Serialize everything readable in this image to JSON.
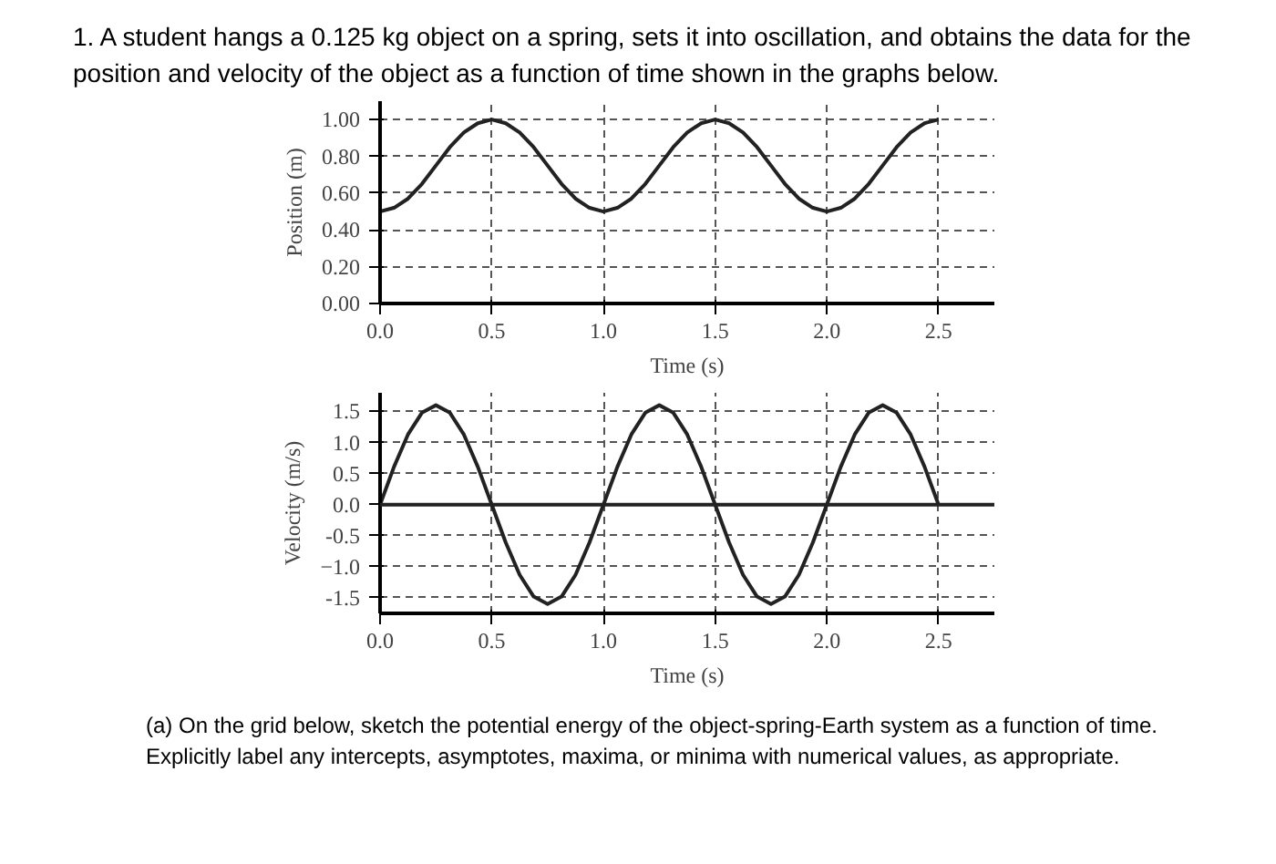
{
  "chart_data": [
    {
      "type": "line",
      "title": "1. A student hangs a 0.125 kg object on a spring, sets it into oscillation, and obtains the data for the position and velocity of the object as a function of time shown in the graphs below.",
      "xlabel": "Time (s)",
      "ylabel": "Position (m)",
      "x": [
        0,
        0.0625,
        0.125,
        0.1875,
        0.25,
        0.3125,
        0.375,
        0.4375,
        0.5,
        0.5625,
        0.625,
        0.6875,
        0.75,
        0.8125,
        0.875,
        0.9375,
        1,
        1.0625,
        1.125,
        1.1875,
        1.25,
        1.3125,
        1.375,
        1.4375,
        1.5,
        1.5625,
        1.625,
        1.6875,
        1.75,
        1.8125,
        1.875,
        1.9375,
        2,
        2.0625,
        2.125,
        2.1875,
        2.25,
        2.3125,
        2.375,
        2.4375,
        2.5
      ],
      "series": [
        {
          "color": "#222222",
          "values": [
            0.5,
            0.52,
            0.57,
            0.65,
            0.75,
            0.85,
            0.93,
            0.98,
            1.0,
            0.98,
            0.93,
            0.85,
            0.75,
            0.65,
            0.57,
            0.52,
            0.5,
            0.52,
            0.57,
            0.65,
            0.75,
            0.85,
            0.93,
            0.98,
            1.0,
            0.98,
            0.93,
            0.85,
            0.75,
            0.65,
            0.57,
            0.52,
            0.5,
            0.52,
            0.57,
            0.65,
            0.75,
            0.85,
            0.93,
            0.98,
            1.0
          ]
        }
      ],
      "xlim": [
        0,
        2.75
      ],
      "xticks": [
        {
          "value": 0,
          "label": "0.0"
        },
        0.5,
        {
          "value": 1,
          "label": "1.0"
        },
        1.5,
        {
          "value": 2,
          "label": "2.0"
        },
        2.5
      ],
      "ylim": [
        0,
        1.1
      ],
      "yticks": [
        {
          "value": 0,
          "label": "0.00"
        },
        {
          "value": 0.2,
          "label": "0.20"
        },
        {
          "value": 0.4,
          "label": "0.40"
        },
        {
          "value": 0.6,
          "label": "0.60"
        },
        {
          "value": 0.8,
          "label": "0.80"
        },
        {
          "value": 1,
          "label": "1.00"
        }
      ],
      "grid": true,
      "line_style": "solid",
      "marker": "none"
    },
    {
      "type": "line",
      "xlabel": "Time (s)",
      "ylabel": "Velocity (m/s)",
      "x": [
        0,
        0.0625,
        0.125,
        0.1875,
        0.25,
        0.3125,
        0.375,
        0.4375,
        0.5,
        0.5625,
        0.625,
        0.6875,
        0.75,
        0.8125,
        0.875,
        0.9375,
        1,
        1.0625,
        1.125,
        1.1875,
        1.25,
        1.3125,
        1.375,
        1.4375,
        1.5,
        1.5625,
        1.625,
        1.6875,
        1.75,
        1.8125,
        1.875,
        1.9375,
        2,
        2.0625,
        2.125,
        2.1875,
        2.25,
        2.3125,
        2.375,
        2.4375,
        2.5
      ],
      "series": [
        {
          "color": "#222222",
          "values": [
            0,
            0.61,
            1.13,
            1.48,
            1.6,
            1.48,
            1.13,
            0.61,
            0,
            -0.61,
            -1.13,
            -1.48,
            -1.6,
            -1.48,
            -1.13,
            -0.61,
            0,
            0.61,
            1.13,
            1.48,
            1.6,
            1.48,
            1.13,
            0.61,
            0,
            -0.61,
            -1.13,
            -1.48,
            -1.6,
            -1.48,
            -1.13,
            -0.61,
            0,
            0.61,
            1.13,
            1.48,
            1.6,
            1.48,
            1.13,
            0.61,
            0
          ]
        }
      ],
      "xlim": [
        0,
        2.75
      ],
      "xticks": [
        {
          "value": 0,
          "label": "0.0"
        },
        0.5,
        {
          "value": 1,
          "label": "1.0"
        },
        1.5,
        {
          "value": 2,
          "label": "2.0"
        },
        2.5
      ],
      "ylim": [
        -1.75,
        1.8
      ],
      "yticks": [
        -1.5,
        {
          "value": -1,
          "label": "−1.0"
        },
        -0.5,
        {
          "value": 0,
          "label": "0.0"
        },
        0.5,
        {
          "value": 1,
          "label": "1.0"
        },
        1.5
      ],
      "ref_lines": [
        {
          "axis": "y",
          "value": 0,
          "color": "#222222"
        }
      ],
      "grid": true,
      "line_style": "solid",
      "marker": "none",
      "annotations": [
        "(a) On the grid below, sketch the potential energy of the object-spring-Earth system as a function of time. Explicitly label any intercepts, asymptotes, maxima, or minima with numerical values, as appropriate."
      ]
    }
  ]
}
